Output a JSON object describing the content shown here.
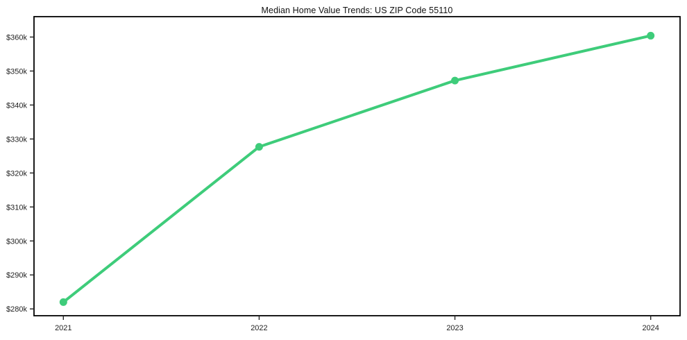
{
  "chart_data": {
    "type": "line",
    "title": "Median Home Value Trends: US ZIP Code 55110",
    "x": [
      2021,
      2022,
      2023,
      2024
    ],
    "x_tick_labels": [
      "2021",
      "2022",
      "2023",
      "2024"
    ],
    "values": [
      282000,
      327700,
      347200,
      360400
    ],
    "y_ticks": [
      {
        "value": 280000,
        "label": "$280k"
      },
      {
        "value": 290000,
        "label": "$290k"
      },
      {
        "value": 300000,
        "label": "$300k"
      },
      {
        "value": 310000,
        "label": "$310k"
      },
      {
        "value": 320000,
        "label": "$320k"
      },
      {
        "value": 330000,
        "label": "$330k"
      },
      {
        "value": 340000,
        "label": "$340k"
      },
      {
        "value": 350000,
        "label": "$350k"
      },
      {
        "value": 360000,
        "label": "$360k"
      }
    ],
    "xlim": [
      2020.85,
      2024.15
    ],
    "ylim": [
      278000,
      366000
    ],
    "grid": false,
    "legend": false,
    "xlabel": "",
    "ylabel": "",
    "line_color": "#3ecc7a",
    "marker": "circle",
    "marker_color": "#3ecc7a",
    "spine_color": "#000000",
    "tick_color": "#222222",
    "background_color": "#ffffff"
  }
}
